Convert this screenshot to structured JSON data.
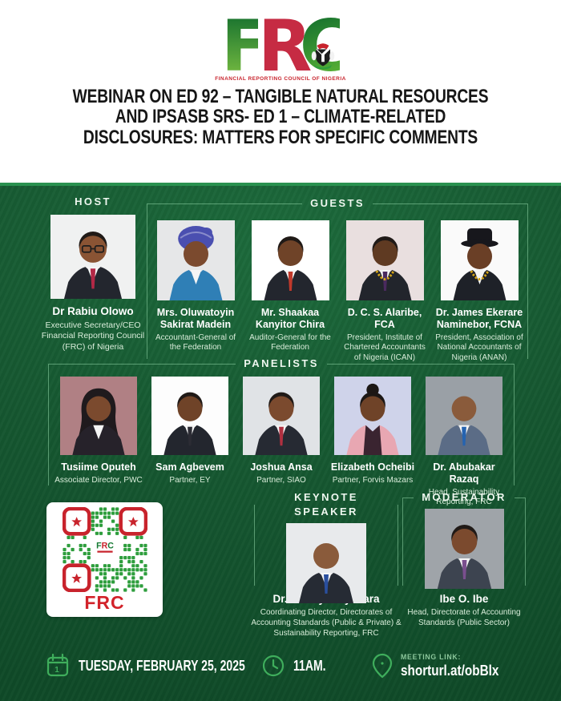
{
  "palette": {
    "background_green": "#14542e",
    "background_green_light": "#1d6b3c",
    "border_green": "#8ed1a4",
    "accent_green": "#3fae5c",
    "brand_red": "#c8232c",
    "logo_red": "#c62b43",
    "logo_green_dark": "#0f6b2d",
    "logo_green_light": "#7fc242",
    "title_color": "#161616",
    "name_color": "#ffffff",
    "role_color": "#d9edda"
  },
  "header": {
    "logo_letters": "FRC",
    "org_name": "FINANCIAL REPORTING COUNCIL OF NIGERIA",
    "title_lines": [
      "WEBINAR ON ED 92 – TANGIBLE NATURAL RESOURCES",
      "AND IPSASB SRS- ED 1 – CLIMATE-RELATED",
      "DISCLOSURES: MATTERS FOR SPECIFIC COMMENTS"
    ]
  },
  "host": {
    "label": "HOST",
    "person": {
      "name": "Dr Rabiu Olowo",
      "title": "Executive Secretary/CEO Financial Reporting Council (FRC) of Nigeria",
      "avatar": {
        "bg": "#f0f1f1",
        "skin": "#8a5434",
        "suit": "#23262e",
        "tie": "#b42846",
        "style": "suit",
        "glasses": true
      }
    }
  },
  "guests": {
    "label": "GUESTS",
    "people": [
      {
        "name": "Mrs. Oluwatoyin Sakirat Madein",
        "title": "Accountant-General of the Federation",
        "avatar": {
          "bg": "#e6e7e8",
          "skin": "#7b4a2e",
          "suit": "#2f7fb6",
          "wrap": "#4a4fb0",
          "style": "wrap"
        }
      },
      {
        "name": "Mr. Shaakaa Kanyitor Chira",
        "title": "Auditor-General for the Federation",
        "avatar": {
          "bg": "#ffffff",
          "skin": "#6f4328",
          "suit": "#23262e",
          "tie": "#c0392b",
          "style": "suit"
        }
      },
      {
        "name": "D. C. S. Alaribe, FCA",
        "title": "President, Institute of Chartered Accountants of Nigeria (ICAN)",
        "avatar": {
          "bg": "#e9dfdf",
          "skin": "#5f3a22",
          "suit": "#22252c",
          "tie": "#4a2a5e",
          "style": "suit",
          "chain": true
        }
      },
      {
        "name": "Dr. James Ekerare Naminebor, FCNA",
        "title": "President, Association of National Accountants of Nigeria (ANAN)",
        "avatar": {
          "bg": "#fafafa",
          "skin": "#6a3f26",
          "suit": "#1e2128",
          "style": "hat",
          "chain": true
        }
      }
    ]
  },
  "panelists": {
    "label": "PANELISTS",
    "people": [
      {
        "name": "Tusiime Oputeh",
        "title": "Associate Director, PWC",
        "avatar": {
          "bg": "#b08084",
          "skin": "#7b4a2e",
          "suit": "#26222a",
          "style": "braids"
        }
      },
      {
        "name": "Sam Agbevem",
        "title": "Partner, EY",
        "avatar": {
          "bg": "#fdfdfd",
          "skin": "#6f4328",
          "suit": "#23262e",
          "tie": "#2c2c34",
          "style": "suit"
        }
      },
      {
        "name": "Joshua Ansa",
        "title": "Partner, SIAO",
        "avatar": {
          "bg": "#e0e3e6",
          "skin": "#7b4a2e",
          "suit": "#262a33",
          "tie": "#b03040",
          "style": "suit"
        }
      },
      {
        "name": "Elizabeth Ocheibi",
        "title": "Partner, Forvis Mazars",
        "avatar": {
          "bg": "#cfd3ea",
          "skin": "#6f4328",
          "suit": "#e8a7b2",
          "inner": "#3a2430",
          "style": "bun"
        }
      },
      {
        "name": "Dr. Abubakar Razaq",
        "title": "Head, Sustainability Reporting, FRC",
        "avatar": {
          "bg": "#9aa0a6",
          "skin": "#8a5b3b",
          "suit": "#5b6c86",
          "tie": "#2563b0",
          "style": "suit",
          "bald": true
        }
      }
    ]
  },
  "qr": {
    "caption": "FRC",
    "center_text": "FRC"
  },
  "keynote": {
    "label": "KEYNOTE SPEAKER",
    "person": {
      "name": "Dr. Iheanyi Anyahara",
      "title": "Coordinating Director, Directorates of Accounting Standards (Public & Private) & Sustainability Reporting, FRC",
      "avatar": {
        "bg": "#e8eaec",
        "skin": "#8a5b3b",
        "suit": "#262b34",
        "tie": "#2a4f9e",
        "style": "suit",
        "bald": true
      }
    }
  },
  "moderator": {
    "label": "MODERATOR",
    "person": {
      "name": "Ibe O. Ibe",
      "title": "Head, Directorate of Accounting Standards (Public Sector)",
      "avatar": {
        "bg": "#9fa4a9",
        "skin": "#7b4a2e",
        "suit": "#3d4450",
        "tie": "#7a4f8e",
        "style": "suit"
      }
    }
  },
  "footer": {
    "date": "TUESDAY, FEBRUARY 25, 2025",
    "time": "11AM.",
    "meeting_link_label": "MEETING LINK:",
    "meeting_link": "shorturl.at/obBlx"
  }
}
